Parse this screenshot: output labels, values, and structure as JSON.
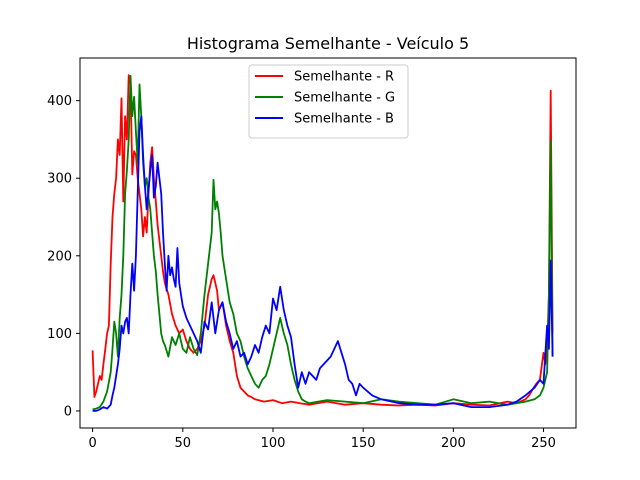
{
  "chart_data": {
    "type": "line",
    "title": "Histograma Semelhante - Veículo 5",
    "xlabel": "",
    "ylabel": "",
    "xlim": [
      -7,
      268
    ],
    "ylim": [
      -22,
      455
    ],
    "xticks": [
      0,
      50,
      100,
      150,
      200,
      250
    ],
    "yticks": [
      0,
      100,
      200,
      300,
      400
    ],
    "grid": false,
    "legend_position": "top-center",
    "series": [
      {
        "name": "Semelhante - R",
        "color": "#ff0000",
        "x": [
          0,
          1,
          2,
          3,
          4,
          5,
          6,
          7,
          8,
          9,
          10,
          11,
          12,
          13,
          14,
          15,
          16,
          17,
          18,
          19,
          20,
          21,
          22,
          23,
          24,
          25,
          26,
          27,
          28,
          29,
          30,
          31,
          32,
          33,
          34,
          35,
          36,
          37,
          38,
          39,
          40,
          42,
          44,
          46,
          48,
          50,
          52,
          54,
          56,
          58,
          60,
          62,
          64,
          66,
          67,
          68,
          69,
          70,
          72,
          74,
          76,
          78,
          80,
          82,
          84,
          86,
          88,
          90,
          95,
          100,
          105,
          110,
          115,
          120,
          130,
          140,
          150,
          160,
          170,
          180,
          190,
          200,
          210,
          220,
          230,
          235,
          240,
          242,
          244,
          246,
          248,
          250,
          251,
          252,
          253,
          254,
          255
        ],
        "y": [
          78,
          18,
          25,
          35,
          45,
          40,
          60,
          80,
          100,
          110,
          190,
          250,
          280,
          300,
          350,
          330,
          403,
          270,
          380,
          350,
          433,
          420,
          305,
          335,
          330,
          300,
          280,
          260,
          225,
          250,
          230,
          280,
          320,
          340,
          300,
          270,
          240,
          220,
          200,
          180,
          165,
          150,
          125,
          110,
          100,
          105,
          90,
          80,
          75,
          80,
          90,
          110,
          150,
          170,
          175,
          165,
          155,
          130,
          140,
          110,
          90,
          75,
          45,
          30,
          25,
          20,
          18,
          15,
          12,
          14,
          10,
          12,
          10,
          8,
          12,
          8,
          10,
          8,
          7,
          8,
          7,
          10,
          8,
          7,
          12,
          10,
          15,
          20,
          28,
          35,
          40,
          75,
          60,
          80,
          150,
          413,
          100
        ]
      },
      {
        "name": "Semelhante - G",
        "color": "#008000",
        "x": [
          0,
          2,
          4,
          6,
          8,
          10,
          11,
          12,
          13,
          14,
          15,
          16,
          17,
          18,
          19,
          20,
          21,
          22,
          23,
          24,
          25,
          26,
          27,
          28,
          29,
          30,
          31,
          32,
          33,
          34,
          35,
          36,
          37,
          38,
          39,
          40,
          42,
          44,
          46,
          48,
          50,
          52,
          54,
          56,
          58,
          60,
          62,
          64,
          66,
          67,
          68,
          69,
          70,
          71,
          72,
          74,
          76,
          78,
          80,
          82,
          84,
          86,
          88,
          90,
          92,
          94,
          96,
          98,
          100,
          102,
          104,
          106,
          108,
          110,
          112,
          114,
          116,
          118,
          120,
          125,
          130,
          140,
          150,
          160,
          170,
          180,
          190,
          200,
          210,
          220,
          230,
          235,
          240,
          245,
          248,
          250,
          252,
          253,
          254,
          255
        ],
        "y": [
          2,
          3,
          5,
          12,
          25,
          50,
          80,
          115,
          100,
          70,
          120,
          150,
          200,
          280,
          310,
          350,
          432,
          380,
          405,
          360,
          320,
          421,
          380,
          320,
          290,
          300,
          275,
          260,
          230,
          200,
          180,
          150,
          125,
          100,
          90,
          85,
          70,
          95,
          85,
          100,
          80,
          75,
          95,
          80,
          72,
          100,
          150,
          190,
          230,
          298,
          260,
          270,
          255,
          230,
          200,
          170,
          140,
          125,
          100,
          90,
          70,
          55,
          45,
          35,
          30,
          40,
          45,
          60,
          80,
          100,
          120,
          100,
          85,
          60,
          40,
          25,
          15,
          12,
          10,
          12,
          14,
          12,
          10,
          15,
          12,
          10,
          8,
          15,
          10,
          12,
          8,
          10,
          12,
          15,
          20,
          30,
          50,
          150,
          348,
          70
        ]
      },
      {
        "name": "Semelhante - B",
        "color": "#0000ff",
        "x": [
          0,
          2,
          4,
          6,
          8,
          10,
          11,
          12,
          13,
          14,
          15,
          16,
          17,
          18,
          19,
          20,
          21,
          22,
          23,
          24,
          25,
          26,
          27,
          28,
          29,
          30,
          31,
          32,
          33,
          34,
          35,
          36,
          37,
          38,
          39,
          40,
          41,
          42,
          43,
          44,
          45,
          46,
          47,
          48,
          50,
          52,
          54,
          56,
          58,
          60,
          62,
          64,
          66,
          68,
          70,
          72,
          74,
          76,
          78,
          80,
          82,
          84,
          86,
          88,
          90,
          92,
          94,
          96,
          98,
          100,
          102,
          104,
          106,
          108,
          110,
          112,
          114,
          116,
          118,
          120,
          122,
          124,
          126,
          128,
          130,
          132,
          134,
          136,
          138,
          140,
          142,
          144,
          146,
          148,
          150,
          155,
          160,
          170,
          180,
          190,
          200,
          210,
          220,
          230,
          235,
          240,
          245,
          248,
          250,
          252,
          253,
          254,
          255
        ],
        "y": [
          0,
          0,
          2,
          5,
          3,
          8,
          20,
          30,
          45,
          60,
          80,
          110,
          100,
          115,
          120,
          100,
          150,
          190,
          155,
          200,
          280,
          360,
          380,
          330,
          290,
          260,
          285,
          310,
          330,
          275,
          290,
          320,
          300,
          280,
          230,
          190,
          155,
          200,
          175,
          185,
          170,
          160,
          210,
          165,
          135,
          120,
          110,
          100,
          90,
          75,
          115,
          105,
          140,
          100,
          130,
          140,
          115,
          100,
          80,
          90,
          70,
          75,
          60,
          70,
          85,
          75,
          95,
          110,
          100,
          145,
          130,
          160,
          130,
          110,
          95,
          60,
          30,
          50,
          35,
          50,
          45,
          40,
          55,
          60,
          65,
          70,
          80,
          90,
          75,
          60,
          40,
          35,
          20,
          35,
          30,
          20,
          15,
          10,
          8,
          8,
          10,
          5,
          5,
          8,
          12,
          20,
          30,
          40,
          35,
          110,
          80,
          194,
          70
        ]
      }
    ]
  }
}
